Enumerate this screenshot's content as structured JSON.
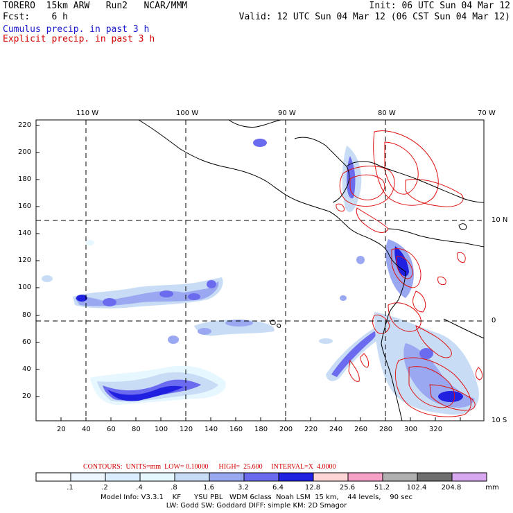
{
  "header": {
    "line1_left": "TORERO  15km ARW   Run2   NCAR/MMM",
    "line1_right": "Init: 06 UTC Sun 04 Mar 12",
    "line2_left": "Fcst:    6 h",
    "line2_right": "Valid: 12 UTC Sun 04 Mar 12 (06 CST Sun 04 Mar 12)",
    "cumulus_label": "Cumulus precip. in past 3 h",
    "explicit_label": "Explicit precip. in past 3 h"
  },
  "map": {
    "top_lon_labels": [
      "110 W",
      "100 W",
      "90 W",
      "80 W",
      "70 W"
    ],
    "right_lat_labels": [
      "10 N",
      "0",
      "10 S"
    ],
    "left_ticks": [
      "220",
      "200",
      "180",
      "160",
      "140",
      "120",
      "100",
      "80",
      "60",
      "40",
      "20"
    ],
    "bottom_ticks": [
      "20",
      "40",
      "60",
      "80",
      "100",
      "120",
      "140",
      "160",
      "180",
      "200",
      "220",
      "240",
      "260",
      "280",
      "300",
      "320"
    ]
  },
  "contours": {
    "text": "CONTOURS:  UNITS=mm  LOW= 0.10000      HIGH=  25.600     INTERVAL=X  4.0000"
  },
  "colorbar": {
    "labels": [
      ".1",
      ".2",
      ".4",
      ".8",
      "1.6",
      "3.2",
      "6.4",
      "12.8",
      "25.6",
      "51.2",
      "102.4",
      "204.8"
    ],
    "unit": "mm",
    "colors": [
      "#ffffff",
      "#eef6ff",
      "#dbeeff",
      "#e6f7ff",
      "#c8ddf5",
      "#9aa8f2",
      "#6b6bf0",
      "#2020e0",
      "#ffd6d6",
      "#f7a0c8",
      "#b0b0b0",
      "#707070",
      "#d8a8f0"
    ]
  },
  "model_info": {
    "line1": "Model Info: V3.3.1    KF      YSU PBL   WDM 6class  Noah LSM  15 km,    44 levels,    90 sec",
    "line2": "LW: Godd SW: Goddard DIFF: simple KM: 2D Smagor"
  }
}
